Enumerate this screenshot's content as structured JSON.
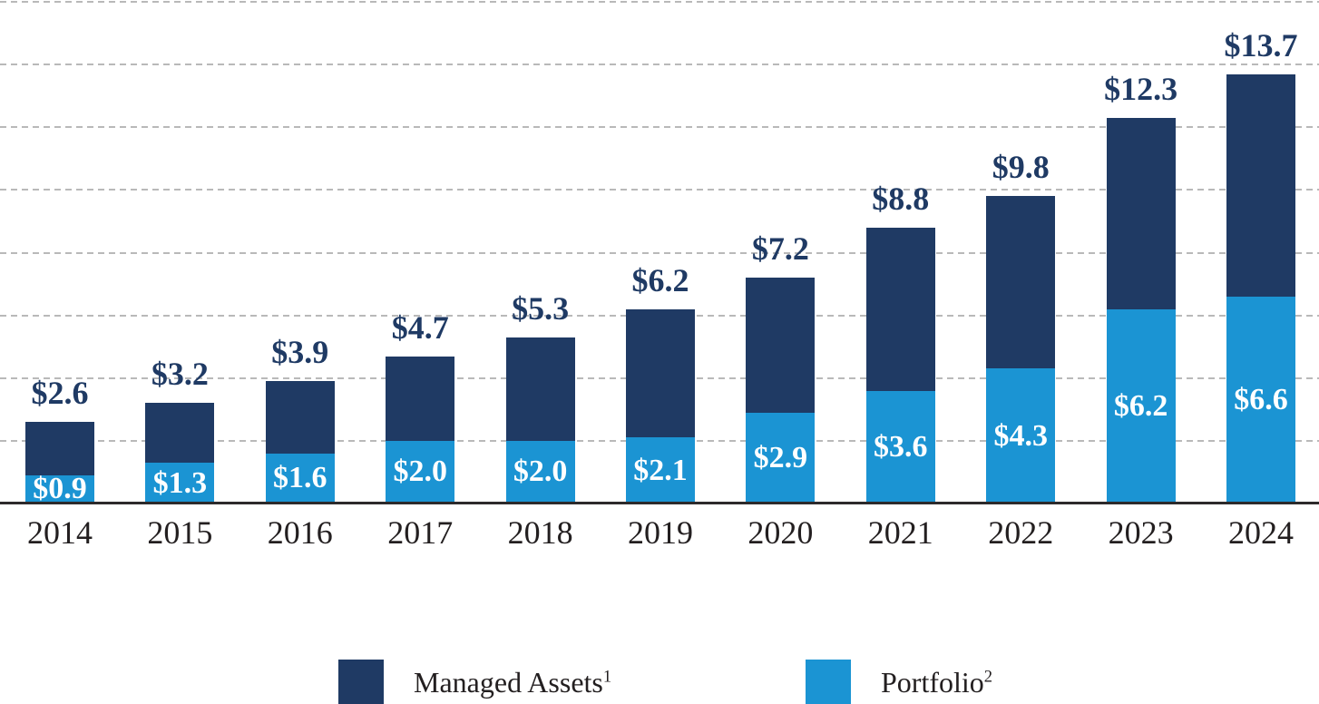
{
  "chart_data": {
    "type": "bar",
    "stacked": true,
    "title": "",
    "xlabel": "",
    "ylabel": "",
    "categories": [
      "2014",
      "2015",
      "2016",
      "2017",
      "2018",
      "2019",
      "2020",
      "2021",
      "2022",
      "2023",
      "2024"
    ],
    "series": [
      {
        "name": "Managed Assets",
        "superscript": "1",
        "role": "total-bar",
        "color": "#1f3a64",
        "values": [
          2.6,
          3.2,
          3.9,
          4.7,
          5.3,
          6.2,
          7.2,
          8.8,
          9.8,
          12.3,
          13.7
        ],
        "data_labels": [
          "$2.6",
          "$3.2",
          "$3.9",
          "$4.7",
          "$5.3",
          "$6.2",
          "$7.2",
          "$8.8",
          "$9.8",
          "$12.3",
          "$13.7"
        ],
        "label_color": "#1f3a64",
        "label_position": "above-bar"
      },
      {
        "name": "Portfolio",
        "superscript": "2",
        "role": "bottom-segment",
        "color": "#1b94d3",
        "values": [
          0.9,
          1.3,
          1.6,
          2.0,
          2.0,
          2.1,
          2.9,
          3.6,
          4.3,
          6.2,
          6.6
        ],
        "data_labels": [
          "$0.9",
          "$1.3",
          "$1.6",
          "$2.0",
          "$2.0",
          "$2.1",
          "$2.9",
          "$3.6",
          "$4.3",
          "$6.2",
          "$6.6"
        ],
        "label_color": "#ffffff",
        "label_position": "inside-segment-centered"
      }
    ],
    "ylim": [
      0,
      16
    ],
    "gridline_interval": 2,
    "grid": "horizontal-dashed",
    "gridline_color": "#b9b9b9",
    "axis_color": "#2d2a2b",
    "category_label_color": "#231f20",
    "legend_position": "bottom"
  },
  "legend": {
    "items": [
      {
        "label": "Managed Assets",
        "superscript": "1",
        "color": "#1f3a64"
      },
      {
        "label": "Portfolio",
        "superscript": "2",
        "color": "#1b94d3"
      }
    ]
  }
}
